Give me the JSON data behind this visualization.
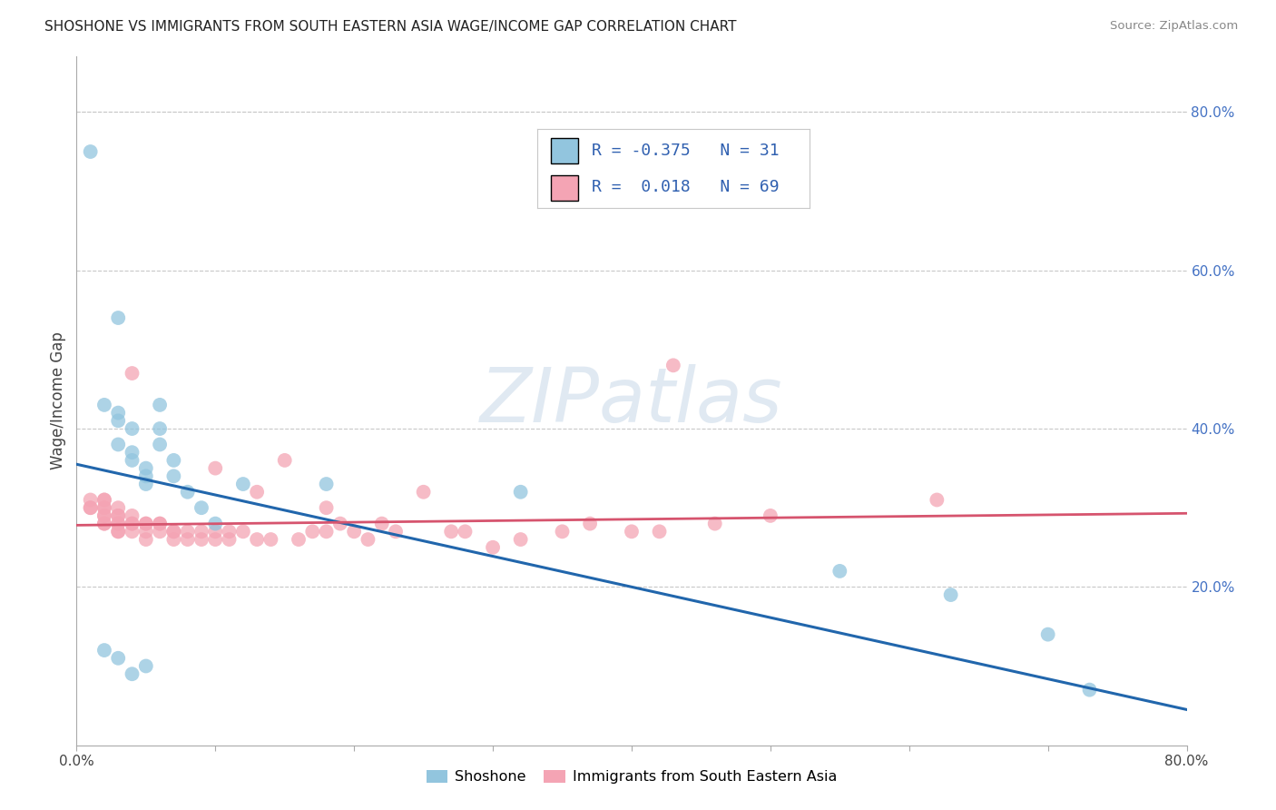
{
  "title": "SHOSHONE VS IMMIGRANTS FROM SOUTH EASTERN ASIA WAGE/INCOME GAP CORRELATION CHART",
  "source": "Source: ZipAtlas.com",
  "ylabel": "Wage/Income Gap",
  "xlim": [
    0.0,
    0.8
  ],
  "ylim": [
    0.0,
    0.87
  ],
  "right_yticks": [
    0.2,
    0.4,
    0.6,
    0.8
  ],
  "right_ytick_labels": [
    "20.0%",
    "40.0%",
    "60.0%",
    "80.0%"
  ],
  "color_blue": "#92c5de",
  "color_pink": "#f4a4b4",
  "line_blue": "#2166ac",
  "line_pink": "#d6546e",
  "blue_line_x0": 0.0,
  "blue_line_y0": 0.355,
  "blue_line_x1": 0.8,
  "blue_line_y1": 0.045,
  "pink_line_x0": 0.0,
  "pink_line_y0": 0.278,
  "pink_line_x1": 0.8,
  "pink_line_y1": 0.293,
  "shoshone_x": [
    0.01,
    0.03,
    0.02,
    0.03,
    0.03,
    0.04,
    0.03,
    0.04,
    0.04,
    0.05,
    0.05,
    0.05,
    0.06,
    0.06,
    0.06,
    0.07,
    0.07,
    0.08,
    0.09,
    0.1,
    0.12,
    0.18,
    0.32,
    0.55,
    0.63,
    0.7,
    0.73,
    0.02,
    0.03,
    0.05,
    0.04
  ],
  "shoshone_y": [
    0.75,
    0.54,
    0.43,
    0.42,
    0.41,
    0.4,
    0.38,
    0.37,
    0.36,
    0.35,
    0.34,
    0.33,
    0.43,
    0.4,
    0.38,
    0.36,
    0.34,
    0.32,
    0.3,
    0.28,
    0.33,
    0.33,
    0.32,
    0.22,
    0.19,
    0.14,
    0.07,
    0.12,
    0.11,
    0.1,
    0.09
  ],
  "immigrants_x": [
    0.01,
    0.01,
    0.01,
    0.02,
    0.02,
    0.02,
    0.02,
    0.02,
    0.02,
    0.02,
    0.02,
    0.03,
    0.03,
    0.03,
    0.03,
    0.03,
    0.03,
    0.03,
    0.04,
    0.04,
    0.04,
    0.04,
    0.04,
    0.05,
    0.05,
    0.05,
    0.05,
    0.06,
    0.06,
    0.06,
    0.07,
    0.07,
    0.07,
    0.08,
    0.08,
    0.09,
    0.09,
    0.1,
    0.1,
    0.1,
    0.11,
    0.11,
    0.12,
    0.13,
    0.13,
    0.14,
    0.15,
    0.16,
    0.17,
    0.18,
    0.18,
    0.19,
    0.2,
    0.21,
    0.22,
    0.23,
    0.25,
    0.27,
    0.28,
    0.3,
    0.32,
    0.35,
    0.37,
    0.4,
    0.42,
    0.43,
    0.46,
    0.5,
    0.62
  ],
  "immigrants_y": [
    0.3,
    0.3,
    0.31,
    0.31,
    0.3,
    0.3,
    0.29,
    0.29,
    0.28,
    0.28,
    0.31,
    0.3,
    0.29,
    0.29,
    0.28,
    0.28,
    0.27,
    0.27,
    0.29,
    0.28,
    0.28,
    0.27,
    0.47,
    0.28,
    0.28,
    0.27,
    0.26,
    0.28,
    0.28,
    0.27,
    0.27,
    0.27,
    0.26,
    0.27,
    0.26,
    0.27,
    0.26,
    0.27,
    0.26,
    0.35,
    0.27,
    0.26,
    0.27,
    0.26,
    0.32,
    0.26,
    0.36,
    0.26,
    0.27,
    0.27,
    0.3,
    0.28,
    0.27,
    0.26,
    0.28,
    0.27,
    0.32,
    0.27,
    0.27,
    0.25,
    0.26,
    0.27,
    0.28,
    0.27,
    0.27,
    0.48,
    0.28,
    0.29,
    0.31
  ],
  "background_color": "#ffffff",
  "grid_color": "#c8c8c8",
  "watermark_text": "ZIPatlas",
  "legend_r1_val": "-0.375",
  "legend_n1_val": "31",
  "legend_r2_val": "0.018",
  "legend_n2_val": "69"
}
